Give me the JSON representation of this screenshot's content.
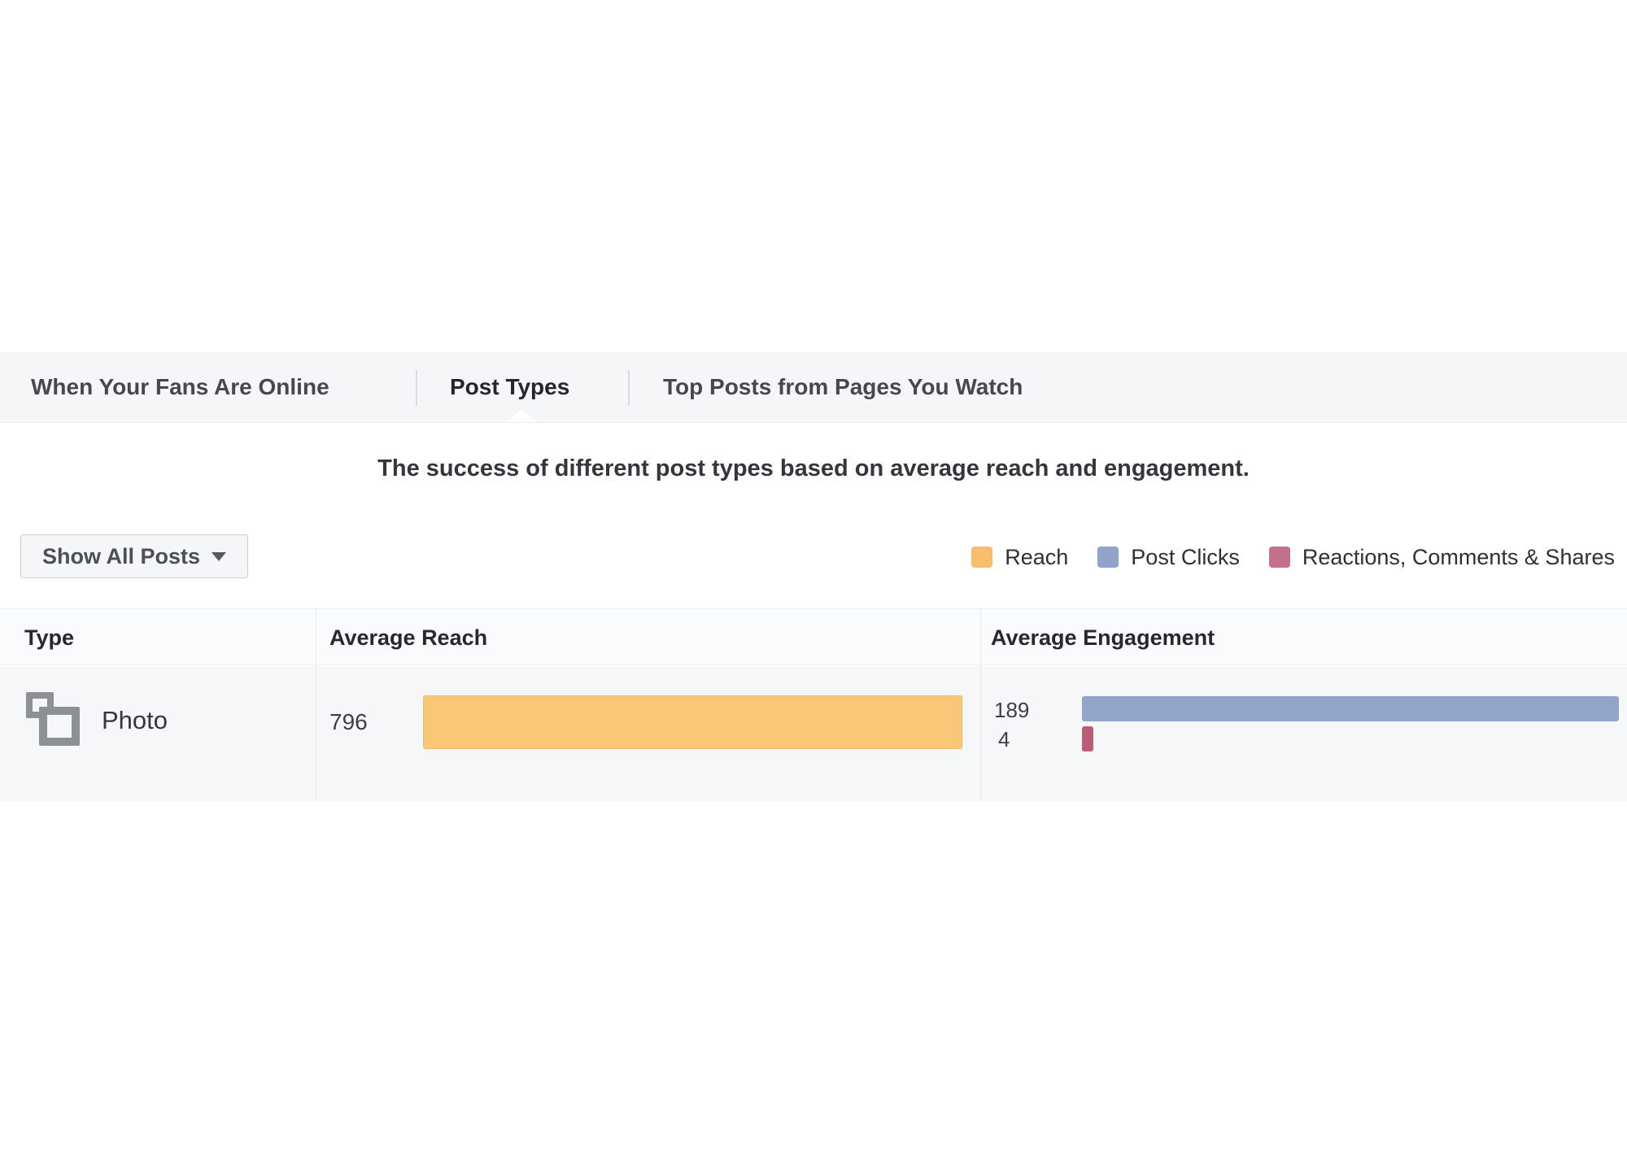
{
  "tabs": {
    "items": [
      {
        "label": "When Your Fans Are Online",
        "active": false
      },
      {
        "label": "Post Types",
        "active": true
      },
      {
        "label": "Top Posts from Pages You Watch",
        "active": false
      }
    ]
  },
  "subtitle": "The success of different post types based on average reach and engagement.",
  "filter_button": {
    "label": "Show All Posts",
    "icon": "caret-down-icon"
  },
  "legend": {
    "items": [
      {
        "label": "Reach",
        "color": "#f8bd6d"
      },
      {
        "label": "Post Clicks",
        "color": "#91a3c9"
      },
      {
        "label": "Reactions, Comments & Shares",
        "color": "#c3708e"
      }
    ]
  },
  "table": {
    "columns": [
      "Type",
      "Average Reach",
      "Average Engagement"
    ],
    "rows": [
      {
        "type": "Photo",
        "icon": "photo-stack-icon",
        "average_reach": 796,
        "post_clicks": 189,
        "reactions_comments_shares": 4
      }
    ],
    "reach_axis_max": 796,
    "engagement_axis_max": 189
  },
  "chart_data": {
    "type": "bar",
    "title": "Post Types — average reach and engagement by post type",
    "categories": [
      "Photo"
    ],
    "series": [
      {
        "name": "Reach",
        "values": [
          796
        ],
        "color": "#fac678"
      },
      {
        "name": "Post Clicks",
        "values": [
          189
        ],
        "color": "#93a4ca"
      },
      {
        "name": "Reactions, Comments & Shares",
        "values": [
          4
        ],
        "color": "#ba5d79"
      }
    ],
    "xlabel": "",
    "ylabel": "",
    "legend_position": "top-right",
    "grid": false
  },
  "colors": {
    "reach_bar": "#fac678",
    "clicks_bar": "#93a4ca",
    "reactions_bar": "#ba5d79",
    "tabbar_bg": "#f5f6f7"
  }
}
